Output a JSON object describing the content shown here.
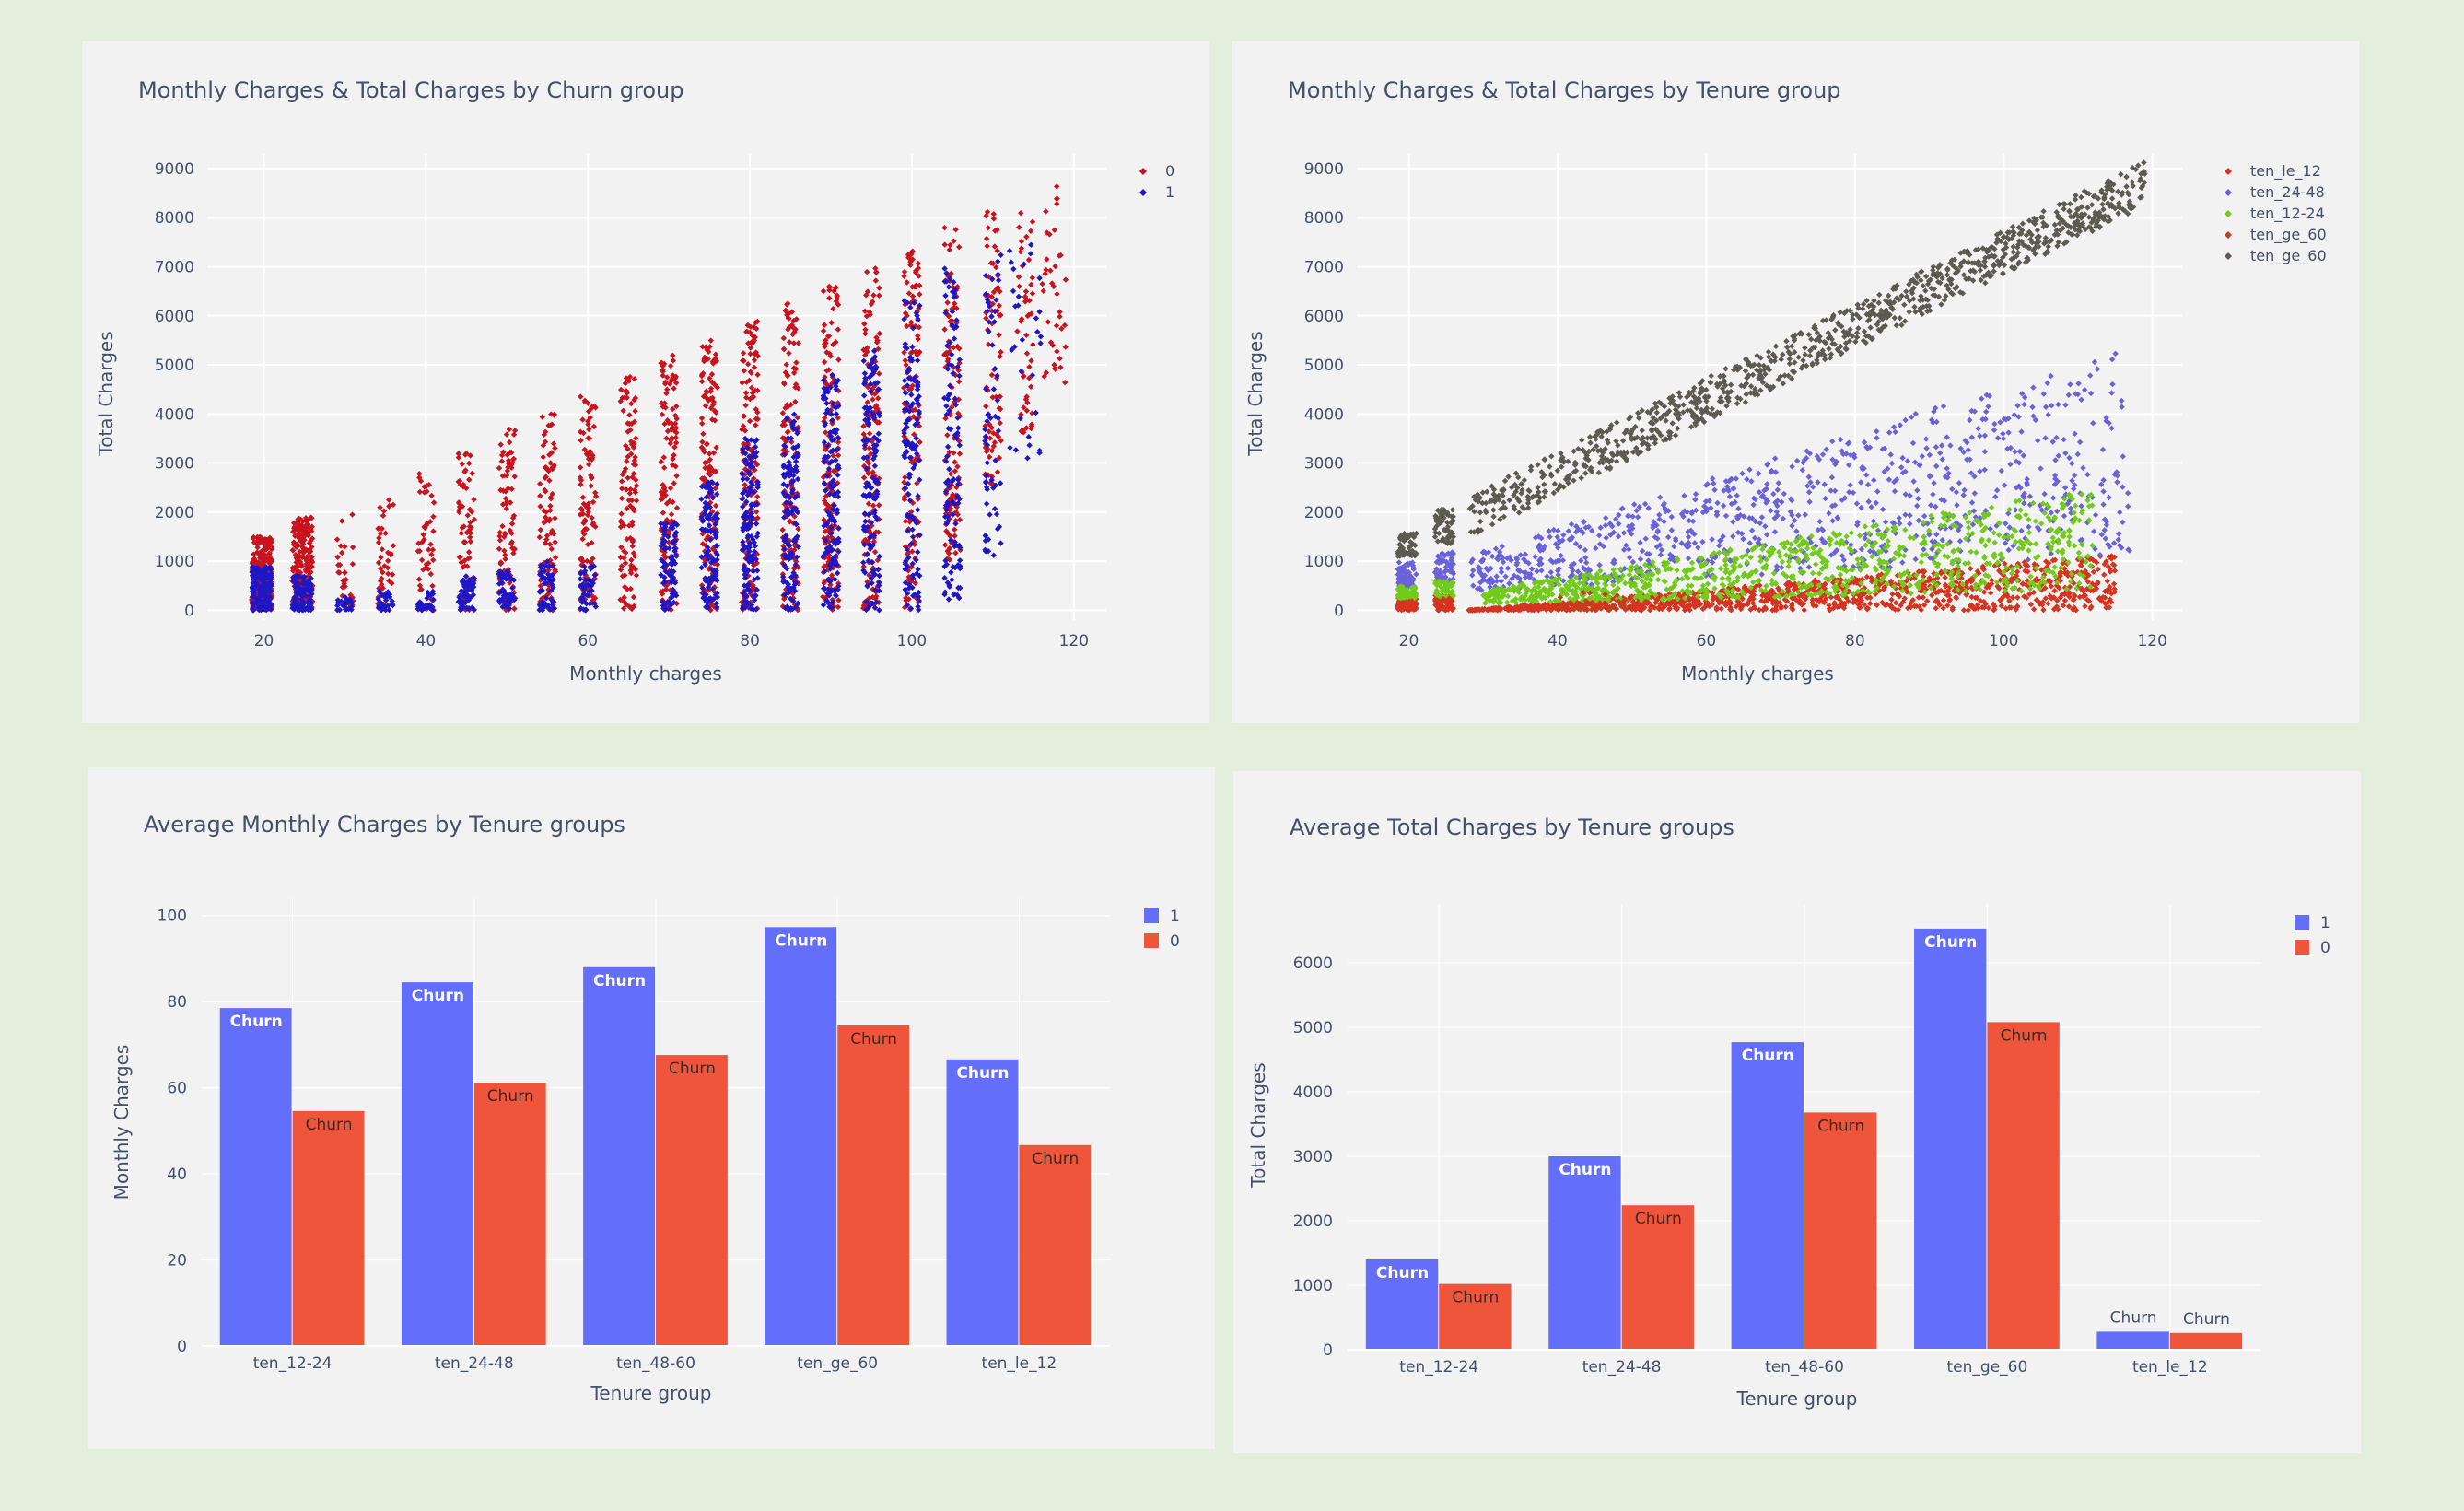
{
  "chart_data": [
    {
      "id": "c1",
      "type": "scatter",
      "title": "Monthly Charges & Total Charges by Churn group",
      "xlabel": "Monthly charges",
      "ylabel": "Total Charges",
      "xlim": [
        13,
        124
      ],
      "ylim": [
        -200,
        9300
      ],
      "xticks": [
        20,
        40,
        60,
        80,
        100,
        120
      ],
      "yticks": [
        0,
        1000,
        2000,
        3000,
        4000,
        5000,
        6000,
        7000,
        8000,
        9000
      ],
      "grid": true,
      "legend_position": "top-right",
      "series": [
        {
          "name": "0",
          "color": "#c8141e",
          "seed": 11,
          "clusters": [
            {
              "x": [
                18.5,
                21
              ],
              "y": [
                0,
                1500
              ],
              "n": 260
            },
            {
              "x": [
                23.5,
                26
              ],
              "y": [
                0,
                1900
              ],
              "n": 220
            },
            {
              "x": [
                29,
                31
              ],
              "y": [
                0,
                2000
              ],
              "n": 30
            },
            {
              "x": [
                34,
                36
              ],
              "y": [
                0,
                2300
              ],
              "n": 40
            },
            {
              "x": [
                39,
                41
              ],
              "y": [
                0,
                2800
              ],
              "n": 50
            },
            {
              "x": [
                44,
                46
              ],
              "y": [
                0,
                3200
              ],
              "n": 70
            },
            {
              "x": [
                49,
                51
              ],
              "y": [
                0,
                3700
              ],
              "n": 90
            },
            {
              "x": [
                54,
                56
              ],
              "y": [
                0,
                4000
              ],
              "n": 90
            },
            {
              "x": [
                59,
                61
              ],
              "y": [
                0,
                4400
              ],
              "n": 100
            },
            {
              "x": [
                64,
                66
              ],
              "y": [
                0,
                4800
              ],
              "n": 110
            },
            {
              "x": [
                69,
                71
              ],
              "y": [
                0,
                5200
              ],
              "n": 130
            },
            {
              "x": [
                74,
                76
              ],
              "y": [
                0,
                5500
              ],
              "n": 140
            },
            {
              "x": [
                79,
                81
              ],
              "y": [
                0,
                5900
              ],
              "n": 150
            },
            {
              "x": [
                84,
                86
              ],
              "y": [
                0,
                6300
              ],
              "n": 150
            },
            {
              "x": [
                89,
                91
              ],
              "y": [
                0,
                6600
              ],
              "n": 150
            },
            {
              "x": [
                94,
                96
              ],
              "y": [
                0,
                7000
              ],
              "n": 150
            },
            {
              "x": [
                99,
                101
              ],
              "y": [
                0,
                7400
              ],
              "n": 140
            },
            {
              "x": [
                104,
                106
              ],
              "y": [
                1000,
                7800
              ],
              "n": 120
            },
            {
              "x": [
                109,
                111
              ],
              "y": [
                2500,
                8200
              ],
              "n": 80
            },
            {
              "x": [
                113,
                115
              ],
              "y": [
                3500,
                8500
              ],
              "n": 50
            },
            {
              "x": [
                116,
                119
              ],
              "y": [
                4500,
                8700
              ],
              "n": 40
            }
          ]
        },
        {
          "name": "1",
          "color": "#1f17c4",
          "seed": 29,
          "clusters": [
            {
              "x": [
                18.5,
                21
              ],
              "y": [
                0,
                900
              ],
              "n": 150
            },
            {
              "x": [
                23.5,
                26
              ],
              "y": [
                0,
                700
              ],
              "n": 110
            },
            {
              "x": [
                29,
                31
              ],
              "y": [
                0,
                300
              ],
              "n": 25
            },
            {
              "x": [
                34,
                36
              ],
              "y": [
                0,
                400
              ],
              "n": 30
            },
            {
              "x": [
                39,
                41
              ],
              "y": [
                0,
                400
              ],
              "n": 30
            },
            {
              "x": [
                44,
                46
              ],
              "y": [
                0,
                700
              ],
              "n": 60
            },
            {
              "x": [
                49,
                51
              ],
              "y": [
                0,
                800
              ],
              "n": 60
            },
            {
              "x": [
                54,
                56
              ],
              "y": [
                0,
                1000
              ],
              "n": 50
            },
            {
              "x": [
                59,
                61
              ],
              "y": [
                0,
                1000
              ],
              "n": 40
            },
            {
              "x": [
                69,
                71
              ],
              "y": [
                0,
                1800
              ],
              "n": 80
            },
            {
              "x": [
                74,
                76
              ],
              "y": [
                0,
                2800
              ],
              "n": 110
            },
            {
              "x": [
                79,
                81
              ],
              "y": [
                0,
                3500
              ],
              "n": 140
            },
            {
              "x": [
                84,
                86
              ],
              "y": [
                0,
                4000
              ],
              "n": 130
            },
            {
              "x": [
                89,
                91
              ],
              "y": [
                0,
                4800
              ],
              "n": 140
            },
            {
              "x": [
                94,
                96
              ],
              "y": [
                0,
                5300
              ],
              "n": 140
            },
            {
              "x": [
                99,
                101
              ],
              "y": [
                0,
                6400
              ],
              "n": 130
            },
            {
              "x": [
                104,
                106
              ],
              "y": [
                200,
                7000
              ],
              "n": 110
            },
            {
              "x": [
                109,
                111
              ],
              "y": [
                1000,
                7500
              ],
              "n": 60
            },
            {
              "x": [
                112,
                116
              ],
              "y": [
                3000,
                7800
              ],
              "n": 30
            }
          ]
        }
      ]
    },
    {
      "id": "c2",
      "type": "scatter",
      "title": "Monthly Charges & Total Charges by Tenure group",
      "xlabel": "Monthly charges",
      "ylabel": "Total Charges",
      "xlim": [
        13,
        124
      ],
      "ylim": [
        -200,
        9300
      ],
      "xticks": [
        20,
        40,
        60,
        80,
        100,
        120
      ],
      "yticks": [
        0,
        1000,
        2000,
        3000,
        4000,
        5000,
        6000,
        7000,
        8000,
        9000
      ],
      "grid": true,
      "legend_position": "top-right",
      "series": [
        {
          "name": "ten_le_12",
          "color": "#d43420",
          "seed": 41,
          "clusters": [
            {
              "x": [
                18.5,
                21
              ],
              "y": [
                0,
                250
              ],
              "n": 120
            },
            {
              "x": [
                23.5,
                26
              ],
              "y": [
                0,
                300
              ],
              "n": 90
            },
            {
              "x": [
                28,
                115
              ],
              "y": [
                0,
                1150
              ],
              "n": 1100,
              "slope": true
            }
          ]
        },
        {
          "name": "ten_24-48",
          "color": "#6a62d8",
          "seed": 53,
          "clusters": [
            {
              "x": [
                18.5,
                21
              ],
              "y": [
                450,
                1000
              ],
              "n": 70
            },
            {
              "x": [
                23.5,
                26
              ],
              "y": [
                550,
                1200
              ],
              "n": 60
            },
            {
              "x": [
                28,
                117
              ],
              "y": [
                1100,
                5400
              ],
              "n": 900,
              "slope": true
            }
          ]
        },
        {
          "name": "ten_12-24",
          "color": "#72ca1a",
          "seed": 67,
          "clusters": [
            {
              "x": [
                18.5,
                21
              ],
              "y": [
                250,
                500
              ],
              "n": 50
            },
            {
              "x": [
                23.5,
                26
              ],
              "y": [
                280,
                600
              ],
              "n": 40
            },
            {
              "x": [
                30,
                112
              ],
              "y": [
                400,
                2500
              ],
              "n": 900,
              "slope": true
            }
          ]
        },
        {
          "name": "ten_ge_60",
          "color": "#c0401e",
          "seed": 79,
          "clusters": [
            {
              "x": [
                40,
                50
              ],
              "y": [
                0,
                400
              ],
              "n": 30
            }
          ]
        },
        {
          "name": "ten_ge_60",
          "color": "#5d5a52",
          "seed": 97,
          "clusters": [
            {
              "x": [
                18.5,
                21
              ],
              "y": [
                1100,
                1600
              ],
              "n": 60
            },
            {
              "x": [
                23.5,
                26
              ],
              "y": [
                1350,
                2050
              ],
              "n": 60
            },
            {
              "x": [
                28,
                119
              ],
              "y": [
                1900,
                8700
              ],
              "n": 1000,
              "line": true
            }
          ]
        }
      ]
    },
    {
      "id": "c3",
      "type": "bar",
      "title": "Average Monthly Charges by Tenure groups",
      "xlabel": "Tenure group",
      "ylabel": "Monthly Charges",
      "categories": [
        "ten_12-24",
        "ten_24-48",
        "ten_48-60",
        "ten_ge_60",
        "ten_le_12"
      ],
      "ylim": [
        0,
        104
      ],
      "yticks": [
        0,
        20,
        40,
        60,
        80,
        100
      ],
      "grid": true,
      "legend_position": "top-right",
      "series": [
        {
          "name": "1",
          "color": "#636efa",
          "values": [
            78.5,
            84.5,
            88,
            97.3,
            66.6
          ],
          "label": "Churn",
          "label_color": "#ffffff"
        },
        {
          "name": "0",
          "color": "#ef553b",
          "values": [
            54.6,
            61.2,
            67.6,
            74.5,
            46.7
          ],
          "label": "Churn",
          "label_color": "#3b2a26"
        }
      ]
    },
    {
      "id": "c4",
      "type": "bar",
      "title": "Average Total Charges by Tenure groups",
      "xlabel": "Tenure group",
      "ylabel": "Total Charges",
      "categories": [
        "ten_12-24",
        "ten_24-48",
        "ten_48-60",
        "ten_ge_60",
        "ten_le_12"
      ],
      "ylim": [
        0,
        6900
      ],
      "yticks": [
        0,
        1000,
        2000,
        3000,
        4000,
        5000,
        6000
      ],
      "grid": true,
      "legend_position": "top-right",
      "series": [
        {
          "name": "1",
          "color": "#636efa",
          "values": [
            1400,
            3000,
            4770,
            6530,
            280
          ],
          "label": "Churn",
          "label_color": "#ffffff"
        },
        {
          "name": "0",
          "color": "#ef553b",
          "values": [
            1020,
            2240,
            3680,
            5080,
            260
          ],
          "label": "Churn",
          "label_color": "#3b2a26"
        }
      ]
    }
  ]
}
